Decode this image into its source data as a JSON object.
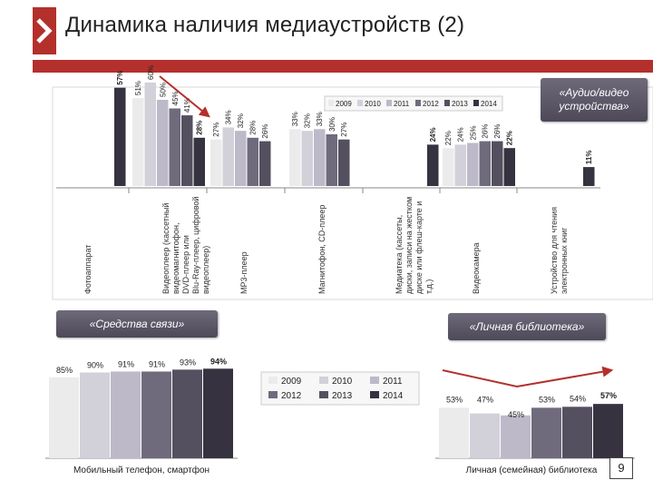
{
  "header": {
    "title": "Динамика наличия медиаустройств (2)"
  },
  "page_number": "9",
  "colors": {
    "accent": "#b4302c",
    "arrow": "#b4302c",
    "series": [
      "#ebebeb",
      "#d2d0d9",
      "#bdb9c9",
      "#6f6b7d",
      "#54505f",
      "#36323f"
    ]
  },
  "chart_data": [
    {
      "type": "bar",
      "callout": "«Аудио/видео устройства»",
      "legend": [
        "2009",
        "2010",
        "2011",
        "2012",
        "2013",
        "2014"
      ],
      "legend_position": "top",
      "categories": [
        "Фотоаппарат",
        "Видеоплеер (кассетный видеомагнитофон, DVD-плеер или Blu-Ray-плеер, цифровой видеоплеер)",
        "MP3-плеер",
        "Магнитофон, CD-плеер",
        "Медиатека (кассеты, диски, записи на жестком диске или флеш-карте и т.д.)",
        "Видеокамера",
        "Устройство для чтения электронных книг"
      ],
      "category_values": [
        {
          "values": [
            null,
            null,
            null,
            null,
            null,
            57
          ],
          "labels": [
            "",
            "",
            "",
            "",
            "",
            "57%"
          ]
        },
        {
          "values": [
            51,
            60,
            50,
            45,
            41,
            28
          ],
          "labels": [
            "51%",
            "60%",
            "50%",
            "45%",
            "41%",
            "28%"
          ]
        },
        {
          "values": [
            27,
            34,
            32,
            28,
            26,
            null
          ],
          "labels": [
            "27%",
            "34%",
            "32%",
            "28%",
            "26%",
            ""
          ]
        },
        {
          "values": [
            33,
            32,
            33,
            30,
            27,
            null
          ],
          "labels": [
            "33%",
            "32%",
            "33%",
            "30%",
            "27%",
            ""
          ]
        },
        {
          "values": [
            null,
            null,
            null,
            null,
            null,
            24
          ],
          "labels": [
            "",
            "",
            "",
            "",
            "",
            "24%"
          ]
        },
        {
          "values": [
            22,
            24,
            25,
            26,
            26,
            22
          ],
          "labels": [
            "22%",
            "24%",
            "25%",
            "26%",
            "26%",
            "22%"
          ]
        },
        {
          "values": [
            null,
            null,
            null,
            null,
            null,
            11
          ],
          "labels": [
            "",
            "",
            "",
            "",
            "",
            "11%"
          ]
        }
      ]
    },
    {
      "type": "bar",
      "callout": "«Средства связи»",
      "category": "Мобильный телефон, смартфон",
      "legend": [
        "2009",
        "2010",
        "2011",
        "2012",
        "2013",
        "2014"
      ],
      "values": [
        85,
        90,
        91,
        91,
        93,
        94
      ],
      "labels": [
        "85%",
        "90%",
        "91%",
        "91%",
        "93%",
        "94%"
      ]
    },
    {
      "type": "bar",
      "callout": "«Личная библиотека»",
      "category": "Личная (семейная) библиотека",
      "legend": [
        "2009",
        "2010",
        "2011",
        "2012",
        "2013",
        "2014"
      ],
      "values": [
        53,
        47,
        45,
        53,
        54,
        57
      ],
      "labels": [
        "53%",
        "47%",
        "45%",
        "53%",
        "54%",
        "57%"
      ]
    }
  ]
}
